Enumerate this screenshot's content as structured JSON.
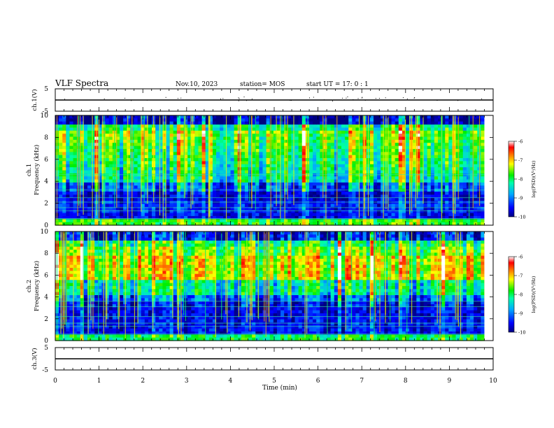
{
  "header": {
    "title": "VLF Spectra",
    "date": "Nov.10, 2023",
    "station": "station= MOS",
    "start": "start  UT =   17: 0  : 1"
  },
  "chart_data": [
    {
      "type": "line",
      "name": "ch1-waveform",
      "ylabel": "ch.1(V)",
      "ylim": [
        -5,
        5
      ],
      "y_ticks": [
        "5",
        "-5"
      ],
      "xlim": [
        0,
        10
      ],
      "series": [
        {
          "name": "ch.1",
          "constant_value": 0
        }
      ]
    },
    {
      "type": "heatmap",
      "name": "ch1-spectrogram",
      "ylabel": "ch.1\nFrequency (kHz)",
      "ylim": [
        0,
        10
      ],
      "y_ticks": [
        "0",
        "2",
        "4",
        "6",
        "8",
        "10"
      ],
      "xlim": [
        0,
        10
      ],
      "data_extent_min": 9.8,
      "colorbar": {
        "label": "log(PSD)(V²/Hz)",
        "range": [
          -10,
          -6
        ],
        "ticks": [
          "-6",
          "-7",
          "-8",
          "-9",
          "-10"
        ]
      }
    },
    {
      "type": "heatmap",
      "name": "ch2-spectrogram",
      "ylabel": "ch.2\nFrequency (kHz)",
      "ylim": [
        0,
        10
      ],
      "y_ticks": [
        "0",
        "2",
        "4",
        "6",
        "8",
        "10"
      ],
      "xlim": [
        0,
        10
      ],
      "data_extent_min": 9.8,
      "colorbar": {
        "label": "log(PSD)(V²/Hz)",
        "range": [
          -10,
          -6
        ],
        "ticks": [
          "-6",
          "-7",
          "-8",
          "-9",
          "-10"
        ]
      }
    },
    {
      "type": "line",
      "name": "ch3-waveform",
      "ylabel": "ch.3(V)",
      "ylim": [
        -5,
        5
      ],
      "y_ticks": [
        "5",
        "-5"
      ],
      "xlim": [
        0,
        10
      ],
      "xlabel": "Time  (min)",
      "x_ticks": [
        "0",
        "1",
        "2",
        "3",
        "4",
        "5",
        "6",
        "7",
        "8",
        "9",
        "10"
      ],
      "series": [
        {
          "name": "ch.3",
          "constant_value": 0
        }
      ]
    }
  ]
}
